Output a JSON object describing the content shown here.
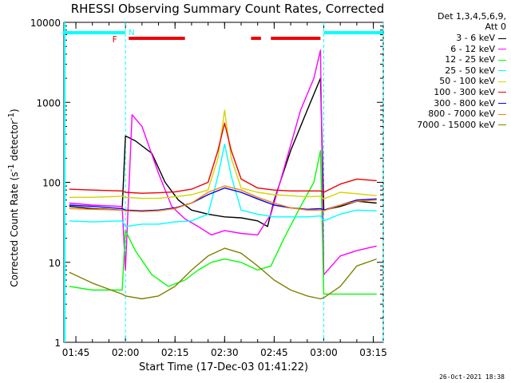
{
  "title": "RHESSI Observing Summary Count Rates, Corrected",
  "xlabel": "Start Time (17-Dec-03 01:41:22)",
  "ylabel_main": "Corrected Count Rate (s",
  "ylabel_sup": "-1",
  "ylabel_mid": " detector",
  "ylabel_tail": ")",
  "legend_header": [
    "Det 1,3,4,5,6,9,",
    "Att 0"
  ],
  "footer": "26-Oct-2021 18:38",
  "flags": {
    "f_label": "F",
    "n_label": "N"
  },
  "colors": {
    "black": "#000000",
    "magenta": "#ff00ff",
    "green": "#00ff00",
    "cyan": "#00ffff",
    "yellow": "#d4d400",
    "red": "#ee0000",
    "blue": "#0000ff",
    "orange": "#ff8000",
    "olive": "#808000"
  },
  "chart_data": {
    "type": "line",
    "x_unit": "minutes since 01:41:22 (tick labels shown as clock time)",
    "xlim_labels": [
      "01:41:22",
      "03:18"
    ],
    "x_ticks": [
      "01:45",
      "02:00",
      "02:15",
      "02:30",
      "02:45",
      "03:00",
      "03:15"
    ],
    "y_scale": "log",
    "ylim": [
      1,
      10000
    ],
    "y_ticks": [
      "1",
      "10",
      "100",
      "1000",
      "10000"
    ],
    "night_bars_cyan": [
      [
        "01:41",
        "02:00"
      ],
      [
        "03:00",
        "03:18"
      ]
    ],
    "flare_bars_red": [
      [
        "02:01",
        "02:18"
      ],
      [
        "02:38",
        "02:41"
      ],
      [
        "02:44",
        "02:59"
      ]
    ],
    "series": [
      {
        "name": "3 - 6 keV",
        "color": "black",
        "points": [
          [
            "01:43",
            50
          ],
          [
            "01:50",
            47
          ],
          [
            "01:59",
            45
          ],
          [
            "02:00",
            380
          ],
          [
            "02:03",
            330
          ],
          [
            "02:08",
            230
          ],
          [
            "02:12",
            100
          ],
          [
            "02:16",
            60
          ],
          [
            "02:20",
            45
          ],
          [
            "02:25",
            40
          ],
          [
            "02:30",
            37
          ],
          [
            "02:35",
            36
          ],
          [
            "02:40",
            33
          ],
          [
            "02:43",
            28
          ],
          [
            "02:45",
            60
          ],
          [
            "02:50",
            250
          ],
          [
            "02:55",
            800
          ],
          [
            "02:59",
            2000
          ],
          [
            "03:00",
            45
          ],
          [
            "03:05",
            50
          ],
          [
            "03:10",
            58
          ],
          [
            "03:16",
            55
          ]
        ]
      },
      {
        "name": "6 - 12 keV",
        "color": "magenta",
        "points": [
          [
            "01:43",
            55
          ],
          [
            "01:50",
            52
          ],
          [
            "01:59",
            50
          ],
          [
            "02:00",
            8
          ],
          [
            "02:02",
            700
          ],
          [
            "02:05",
            500
          ],
          [
            "02:10",
            130
          ],
          [
            "02:14",
            50
          ],
          [
            "02:18",
            35
          ],
          [
            "02:22",
            28
          ],
          [
            "02:26",
            22
          ],
          [
            "02:30",
            25
          ],
          [
            "02:35",
            23
          ],
          [
            "02:40",
            22
          ],
          [
            "02:44",
            40
          ],
          [
            "02:48",
            150
          ],
          [
            "02:53",
            800
          ],
          [
            "02:57",
            2000
          ],
          [
            "02:59",
            4500
          ],
          [
            "03:00",
            7
          ],
          [
            "03:05",
            12
          ],
          [
            "03:10",
            14
          ],
          [
            "03:16",
            16
          ]
        ]
      },
      {
        "name": "12 - 25 keV",
        "color": "green",
        "points": [
          [
            "01:43",
            5
          ],
          [
            "01:50",
            4.5
          ],
          [
            "01:59",
            4.5
          ],
          [
            "02:00",
            25
          ],
          [
            "02:03",
            14
          ],
          [
            "02:08",
            7
          ],
          [
            "02:13",
            5
          ],
          [
            "02:18",
            6
          ],
          [
            "02:22",
            8
          ],
          [
            "02:26",
            10
          ],
          [
            "02:30",
            11
          ],
          [
            "02:35",
            10
          ],
          [
            "02:40",
            8
          ],
          [
            "02:44",
            9
          ],
          [
            "02:48",
            20
          ],
          [
            "02:53",
            50
          ],
          [
            "02:57",
            100
          ],
          [
            "02:59",
            250
          ],
          [
            "03:00",
            4
          ],
          [
            "03:05",
            4
          ],
          [
            "03:10",
            4
          ],
          [
            "03:16",
            4
          ]
        ]
      },
      {
        "name": "25 - 50 keV",
        "color": "cyan",
        "points": [
          [
            "01:43",
            33
          ],
          [
            "01:50",
            32
          ],
          [
            "01:59",
            33
          ],
          [
            "02:00",
            28
          ],
          [
            "02:05",
            30
          ],
          [
            "02:10",
            30
          ],
          [
            "02:15",
            32
          ],
          [
            "02:20",
            33
          ],
          [
            "02:25",
            40
          ],
          [
            "02:28",
            120
          ],
          [
            "02:30",
            300
          ],
          [
            "02:32",
            120
          ],
          [
            "02:35",
            45
          ],
          [
            "02:40",
            40
          ],
          [
            "02:45",
            37
          ],
          [
            "02:50",
            37
          ],
          [
            "02:55",
            37
          ],
          [
            "02:59",
            38
          ],
          [
            "03:00",
            33
          ],
          [
            "03:05",
            40
          ],
          [
            "03:10",
            45
          ],
          [
            "03:16",
            44
          ]
        ]
      },
      {
        "name": "50 - 100 keV",
        "color": "yellow",
        "points": [
          [
            "01:43",
            65
          ],
          [
            "01:50",
            65
          ],
          [
            "01:59",
            67
          ],
          [
            "02:00",
            65
          ],
          [
            "02:05",
            63
          ],
          [
            "02:10",
            63
          ],
          [
            "02:15",
            66
          ],
          [
            "02:20",
            70
          ],
          [
            "02:25",
            80
          ],
          [
            "02:28",
            200
          ],
          [
            "02:30",
            800
          ],
          [
            "02:32",
            200
          ],
          [
            "02:35",
            85
          ],
          [
            "02:40",
            75
          ],
          [
            "02:45",
            70
          ],
          [
            "02:50",
            68
          ],
          [
            "02:55",
            66
          ],
          [
            "02:59",
            67
          ],
          [
            "03:00",
            62
          ],
          [
            "03:05",
            75
          ],
          [
            "03:10",
            72
          ],
          [
            "03:16",
            68
          ]
        ]
      },
      {
        "name": "100 - 300 keV",
        "color": "red",
        "points": [
          [
            "01:43",
            82
          ],
          [
            "01:50",
            80
          ],
          [
            "01:59",
            78
          ],
          [
            "02:00",
            75
          ],
          [
            "02:05",
            73
          ],
          [
            "02:10",
            74
          ],
          [
            "02:15",
            76
          ],
          [
            "02:20",
            82
          ],
          [
            "02:25",
            100
          ],
          [
            "02:28",
            250
          ],
          [
            "02:30",
            550
          ],
          [
            "02:32",
            250
          ],
          [
            "02:35",
            110
          ],
          [
            "02:40",
            85
          ],
          [
            "02:45",
            80
          ],
          [
            "02:50",
            78
          ],
          [
            "02:55",
            78
          ],
          [
            "02:59",
            78
          ],
          [
            "03:00",
            75
          ],
          [
            "03:05",
            95
          ],
          [
            "03:10",
            110
          ],
          [
            "03:16",
            105
          ]
        ]
      },
      {
        "name": "300 - 800 keV",
        "color": "blue",
        "points": [
          [
            "01:43",
            52
          ],
          [
            "01:50",
            50
          ],
          [
            "01:59",
            47
          ],
          [
            "02:00",
            45
          ],
          [
            "02:05",
            44
          ],
          [
            "02:10",
            45
          ],
          [
            "02:15",
            48
          ],
          [
            "02:20",
            55
          ],
          [
            "02:25",
            70
          ],
          [
            "02:30",
            85
          ],
          [
            "02:35",
            75
          ],
          [
            "02:40",
            62
          ],
          [
            "02:45",
            52
          ],
          [
            "02:50",
            48
          ],
          [
            "02:55",
            46
          ],
          [
            "02:59",
            47
          ],
          [
            "03:00",
            45
          ],
          [
            "03:05",
            52
          ],
          [
            "03:10",
            60
          ],
          [
            "03:16",
            62
          ]
        ]
      },
      {
        "name": "800 - 7000 keV",
        "color": "orange",
        "points": [
          [
            "01:43",
            47
          ],
          [
            "01:50",
            46
          ],
          [
            "01:59",
            45
          ],
          [
            "02:00",
            44
          ],
          [
            "02:05",
            43
          ],
          [
            "02:10",
            44
          ],
          [
            "02:15",
            47
          ],
          [
            "02:20",
            55
          ],
          [
            "02:25",
            75
          ],
          [
            "02:30",
            90
          ],
          [
            "02:35",
            80
          ],
          [
            "02:40",
            65
          ],
          [
            "02:45",
            55
          ],
          [
            "02:50",
            48
          ],
          [
            "02:55",
            45
          ],
          [
            "02:59",
            45
          ],
          [
            "03:00",
            44
          ],
          [
            "03:05",
            52
          ],
          [
            "03:10",
            58
          ],
          [
            "03:16",
            60
          ]
        ]
      },
      {
        "name": "7000 - 15000 keV",
        "color": "olive",
        "points": [
          [
            "01:43",
            7.5
          ],
          [
            "01:50",
            5.5
          ],
          [
            "01:59",
            4
          ],
          [
            "02:00",
            3.8
          ],
          [
            "02:05",
            3.5
          ],
          [
            "02:10",
            3.8
          ],
          [
            "02:15",
            5
          ],
          [
            "02:20",
            8
          ],
          [
            "02:25",
            12
          ],
          [
            "02:30",
            15
          ],
          [
            "02:35",
            13
          ],
          [
            "02:40",
            9
          ],
          [
            "02:45",
            6
          ],
          [
            "02:50",
            4.5
          ],
          [
            "02:55",
            3.8
          ],
          [
            "02:59",
            3.5
          ],
          [
            "03:00",
            3.6
          ],
          [
            "03:05",
            5
          ],
          [
            "03:10",
            9
          ],
          [
            "03:16",
            11
          ]
        ]
      }
    ]
  }
}
